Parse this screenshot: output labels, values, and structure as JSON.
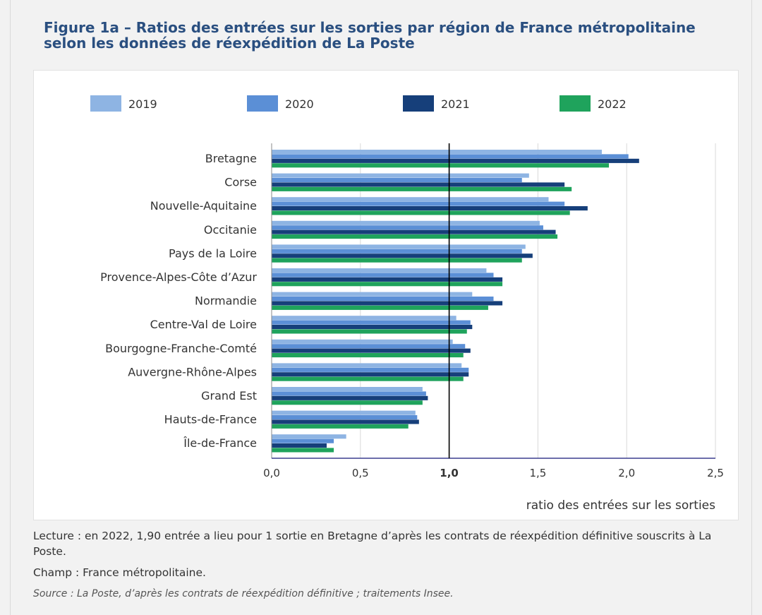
{
  "title": "Figure 1a – Ratios des entrées sur les sorties par région de France métropolitaine selon les données de réexpédition de La Poste",
  "notes": {
    "lecture": "Lecture : en 2022, 1,90 entrée a lieu pour 1 sortie en Bretagne d’après les contrats de réexpédition définitive souscrits à La Poste.",
    "champ": "Champ : France métropolitaine.",
    "source": "Source : La Poste, d’après les contrats de réexpédition définitive ; traitements Insee."
  },
  "chart_data": {
    "type": "bar",
    "orientation": "horizontal",
    "title": "Figure 1a – Ratios des entrées sur les sorties par région de France métropolitaine selon les données de réexpédition de La Poste",
    "xlabel": "ratio des entrées sur les sorties",
    "ylabel": "",
    "xlim": [
      0,
      2.5
    ],
    "xticks": [
      0,
      0.5,
      1.0,
      1.5,
      2.0,
      2.5
    ],
    "xtick_labels": [
      "0,0",
      "0,5",
      "1,0",
      "1,5",
      "2,0",
      "2,5"
    ],
    "reference_line": 1.0,
    "legend_position": "top",
    "categories": [
      "Bretagne",
      "Corse",
      "Nouvelle-Aquitaine",
      "Occitanie",
      "Pays de la Loire",
      "Provence-Alpes-Côte d’Azur",
      "Normandie",
      "Centre-Val de Loire",
      "Bourgogne-Franche-Comté",
      "Auvergne-Rhône-Alpes",
      "Grand Est",
      "Hauts-de-France",
      "Île-de-France"
    ],
    "series": [
      {
        "name": "2019",
        "color": "#8eb4e3",
        "values": [
          1.86,
          1.45,
          1.56,
          1.51,
          1.43,
          1.21,
          1.13,
          1.04,
          1.02,
          1.07,
          0.85,
          0.81,
          0.42
        ]
      },
      {
        "name": "2020",
        "color": "#5b8fd6",
        "values": [
          2.01,
          1.41,
          1.65,
          1.53,
          1.41,
          1.25,
          1.25,
          1.12,
          1.09,
          1.11,
          0.87,
          0.82,
          0.35
        ]
      },
      {
        "name": "2021",
        "color": "#163f7a",
        "values": [
          2.07,
          1.65,
          1.78,
          1.6,
          1.47,
          1.3,
          1.3,
          1.13,
          1.12,
          1.11,
          0.88,
          0.83,
          0.31
        ]
      },
      {
        "name": "2022",
        "color": "#1fa35c",
        "values": [
          1.9,
          1.69,
          1.68,
          1.61,
          1.41,
          1.3,
          1.22,
          1.1,
          1.08,
          1.08,
          0.85,
          0.77,
          0.35
        ]
      }
    ]
  }
}
